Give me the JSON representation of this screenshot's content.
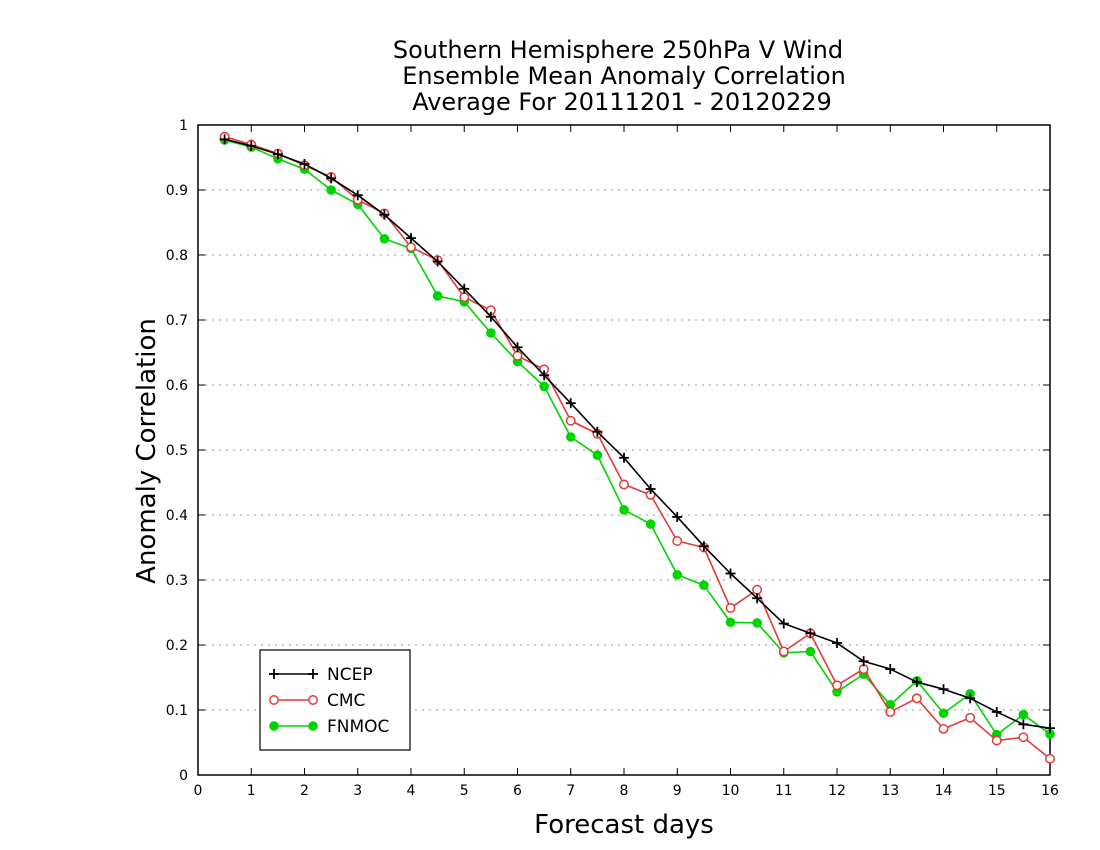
{
  "chart_data": {
    "type": "line",
    "title_lines": [
      "Southern Hemisphere 250hPa V Wind",
      "Ensemble Mean Anomaly Correlation",
      "Average For 20111201 - 20120229"
    ],
    "xlabel": "Forecast days",
    "ylabel": "Anomaly Correlation",
    "xlim": [
      0,
      16
    ],
    "ylim": [
      0,
      1
    ],
    "x_ticks": [
      "0",
      "1",
      "2",
      "3",
      "4",
      "5",
      "6",
      "7",
      "8",
      "9",
      "10",
      "11",
      "12",
      "13",
      "14",
      "15",
      "16"
    ],
    "y_ticks": [
      "0",
      "0.1",
      "0.2",
      "0.3",
      "0.4",
      "0.5",
      "0.6",
      "0.7",
      "0.8",
      "0.9",
      "1"
    ],
    "grid": "horizontal dotted",
    "legend_position": "bottom-left",
    "x": [
      0.5,
      1,
      1.5,
      2,
      2.5,
      3,
      3.5,
      4,
      4.5,
      5,
      5.5,
      6,
      6.5,
      7,
      7.5,
      8,
      8.5,
      9,
      9.5,
      10,
      10.5,
      11,
      11.5,
      12,
      12.5,
      13,
      13.5,
      14,
      14.5,
      15,
      15.5,
      16
    ],
    "series": [
      {
        "name": "NCEP",
        "color": "#000000",
        "marker": "plus",
        "values": [
          0.978,
          0.968,
          0.955,
          0.94,
          0.918,
          0.892,
          0.862,
          0.826,
          0.79,
          0.748,
          0.705,
          0.658,
          0.615,
          0.572,
          0.528,
          0.488,
          0.44,
          0.397,
          0.352,
          0.31,
          0.272,
          0.233,
          0.218,
          0.203,
          0.175,
          0.163,
          0.143,
          0.132,
          0.118,
          0.097,
          0.078,
          0.072
        ]
      },
      {
        "name": "CMC",
        "color": "#e23b3b",
        "marker": "open-circle",
        "values": [
          0.982,
          0.97,
          0.956,
          0.938,
          0.92,
          0.885,
          0.864,
          0.812,
          0.792,
          0.735,
          0.715,
          0.645,
          0.624,
          0.545,
          0.525,
          0.447,
          0.431,
          0.36,
          0.35,
          0.257,
          0.285,
          0.19,
          0.218,
          0.138,
          0.163,
          0.097,
          0.118,
          0.071,
          0.088,
          0.053,
          0.058,
          0.025
        ]
      },
      {
        "name": "FNMOC",
        "color": "#00d400",
        "marker": "filled-circle",
        "values": [
          0.977,
          0.966,
          0.948,
          0.932,
          0.9,
          0.878,
          0.825,
          0.81,
          0.737,
          0.728,
          0.68,
          0.636,
          0.598,
          0.52,
          0.492,
          0.408,
          0.386,
          0.308,
          0.292,
          0.235,
          0.234,
          0.188,
          0.19,
          0.128,
          0.155,
          0.108,
          0.145,
          0.095,
          0.125,
          0.062,
          0.093,
          0.063
        ]
      }
    ]
  }
}
